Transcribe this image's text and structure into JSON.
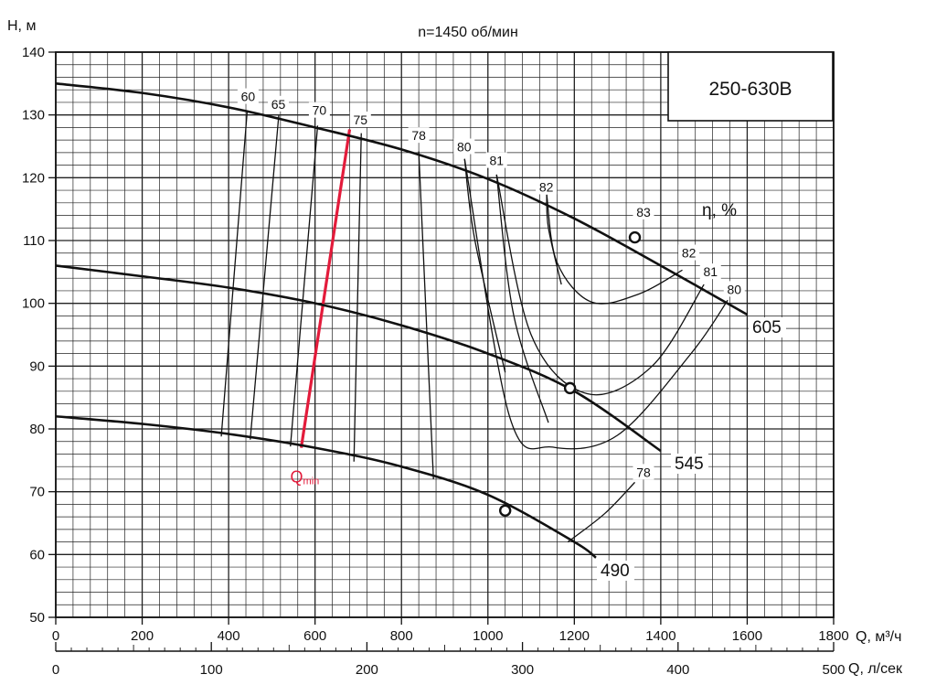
{
  "chart_data": {
    "type": "line",
    "title": "n=1450 об/мин",
    "model": "250-630В",
    "ylabel": "H, м",
    "xlabel": "Q, м³/ч",
    "x2label": "Q, л/сек",
    "efficiency_label": "η, %",
    "xlim": [
      0,
      1800
    ],
    "ylim": [
      50,
      140
    ],
    "x_ticks": [
      "0",
      "200",
      "400",
      "600",
      "800",
      "1000",
      "1200",
      "1400",
      "1600",
      "1800"
    ],
    "x_tick_values": [
      0,
      200,
      400,
      600,
      800,
      1000,
      1200,
      1400,
      1600,
      1800
    ],
    "y_ticks": [
      "50",
      "60",
      "70",
      "80",
      "90",
      "100",
      "110",
      "120",
      "130",
      "140"
    ],
    "y_tick_values": [
      50,
      60,
      70,
      80,
      90,
      100,
      110,
      120,
      130,
      140
    ],
    "x2lim": [
      0,
      500
    ],
    "x2_ticks": [
      "0",
      "100",
      "200",
      "300",
      "400",
      "500"
    ],
    "x2_tick_values": [
      0,
      100,
      200,
      300,
      400,
      500
    ],
    "grid": true,
    "series": [
      {
        "name": "605",
        "x": [
          0,
          200,
          400,
          600,
          800,
          1000,
          1200,
          1400,
          1600
        ],
        "y": [
          135,
          133.5,
          131.2,
          128,
          124.5,
          119.8,
          113.5,
          106,
          98.2
        ]
      },
      {
        "name": "545",
        "x": [
          0,
          200,
          400,
          600,
          800,
          1000,
          1200,
          1400
        ],
        "y": [
          106,
          104.3,
          102.5,
          100,
          96.5,
          92,
          86,
          76.5
        ]
      },
      {
        "name": "490",
        "x": [
          0,
          200,
          400,
          600,
          800,
          1000,
          1200,
          1250
        ],
        "y": [
          82,
          80.8,
          79.2,
          77,
          74,
          69.5,
          62,
          59.5
        ]
      }
    ],
    "bep_points": [
      {
        "x": 1340,
        "y": 110.5
      },
      {
        "x": 1190,
        "y": 86.5
      },
      {
        "x": 1040,
        "y": 67
      }
    ],
    "efficiency_lines": [
      {
        "label": "60",
        "label_x": 445,
        "label_y": 132.2,
        "points": [
          [
            383,
            78.8
          ],
          [
            443,
            130.6
          ]
        ]
      },
      {
        "label": "65",
        "label_x": 515,
        "label_y": 131.0,
        "points": [
          [
            450,
            78.3
          ],
          [
            516,
            129.9
          ]
        ]
      },
      {
        "label": "70",
        "label_x": 610,
        "label_y": 130.0,
        "points": [
          [
            543,
            77.2
          ],
          [
            606,
            128.3
          ]
        ]
      },
      {
        "label": "75",
        "label_x": 705,
        "label_y": 128.5,
        "points": [
          [
            690,
            74.8
          ],
          [
            707,
            127.1
          ]
        ]
      },
      {
        "label": "78",
        "label_x": 840,
        "label_y": 126.0,
        "points": [
          [
            874,
            72.0
          ],
          [
            840,
            124.2
          ]
        ]
      },
      {
        "label": "80",
        "label_x": 945,
        "label_y": 124.2,
        "points": [
          [
            1040,
            89.0
          ],
          [
            970,
            110.0
          ],
          [
            946,
            123.0
          ]
        ]
      },
      {
        "label": "81",
        "label_x": 1020,
        "label_y": 122.0,
        "points": [
          [
            1140,
            81.0
          ],
          [
            1060,
            98.0
          ],
          [
            1020,
            120.5
          ]
        ]
      },
      {
        "label": "82",
        "label_x": 1135,
        "label_y": 117.8,
        "points": [
          [
            1170,
            103.0
          ],
          [
            1140,
            112.0
          ],
          [
            1136,
            117.3
          ]
        ]
      }
    ],
    "efficiency_loops": [
      {
        "label": "82",
        "label_x": 1465,
        "label_y": 107.3,
        "points": [
          [
            1136,
            117.3
          ],
          [
            1160,
            106.5
          ],
          [
            1240,
            100.2
          ],
          [
            1350,
            101.5
          ],
          [
            1450,
            105.3
          ]
        ]
      },
      {
        "label": "81",
        "label_x": 1515,
        "label_y": 104.3,
        "points": [
          [
            1020,
            120.5
          ],
          [
            1100,
            95.0
          ],
          [
            1230,
            85.6
          ],
          [
            1380,
            90.0
          ],
          [
            1500,
            103.0
          ]
        ]
      },
      {
        "label": "80",
        "label_x": 1570,
        "label_y": 101.5,
        "points": [
          [
            946,
            123.0
          ],
          [
            1050,
            82.0
          ],
          [
            1150,
            77.1
          ],
          [
            1300,
            79.0
          ],
          [
            1470,
            92.0
          ],
          [
            1555,
            100.5
          ]
        ]
      }
    ],
    "eff_78_right": {
      "label": "78",
      "label_x": 1360,
      "label_y": 71.5,
      "points": [
        [
          1185,
          62.0
        ],
        [
          1270,
          66.5
        ],
        [
          1340,
          71.5
        ]
      ]
    },
    "qmin_line": {
      "label": "Q",
      "sub": "min",
      "points": [
        [
          568,
          77.0
        ],
        [
          680,
          127.7
        ]
      ],
      "color": "#e31b3b"
    }
  }
}
